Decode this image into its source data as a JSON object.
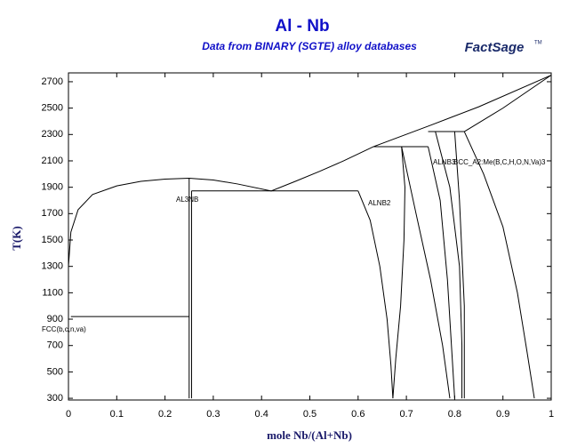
{
  "chart_data": {
    "type": "line",
    "title": "Al - Nb",
    "subtitle": "Data from BINARY (SGTE) alloy databases",
    "logo": "FactSage",
    "logo_mark": "TM",
    "x_label": "mole Nb/(Al+Nb)",
    "y_label": "T(K)",
    "xlim": [
      0,
      1
    ],
    "ylim": [
      287,
      2767
    ],
    "xticks": [
      0,
      0.1,
      0.2,
      0.3,
      0.4,
      0.5,
      0.6,
      0.7,
      0.8,
      0.9,
      1
    ],
    "yticks": [
      300,
      500,
      700,
      900,
      1100,
      1300,
      1500,
      1700,
      1900,
      2100,
      2300,
      2500,
      2700
    ],
    "annotations": [
      "AL3NB",
      "ALNB2",
      "FCC(b,c,n,va)",
      "ALNB3",
      "BCC_A2:Me(B,C,H,O,N,Va)3"
    ],
    "series": [
      {
        "color": "#000000",
        "x": [
          0,
          0.005,
          0.02,
          0.05,
          0.1,
          0.15,
          0.2,
          0.25,
          0.3,
          0.35,
          0.42,
          0.47,
          0.52,
          0.57,
          0.632,
          0.75,
          0.85,
          1
        ],
        "values": [
          1300,
          1560,
          1730,
          1845,
          1910,
          1945,
          1962,
          1968,
          1955,
          1925,
          1872,
          1945,
          2020,
          2100,
          2208,
          2370,
          2510,
          2750
        ]
      },
      {
        "color": "#000000",
        "x": [
          0.82,
          0.9,
          1
        ],
        "values": [
          2322,
          2500,
          2750
        ]
      },
      {
        "color": "#000000",
        "x": [
          0.005,
          0.25
        ],
        "values": [
          920,
          920
        ]
      },
      {
        "color": "#000000",
        "x": [
          0.25,
          0.25
        ],
        "values": [
          300,
          1968
        ]
      },
      {
        "color": "#000000",
        "x": [
          0.255,
          0.255
        ],
        "values": [
          300,
          1872
        ]
      },
      {
        "color": "#000000",
        "x": [
          0.255,
          0.6
        ],
        "values": [
          1872,
          1872
        ]
      },
      {
        "color": "#000000",
        "x": [
          0.632,
          0.745
        ],
        "values": [
          2208,
          2208
        ]
      },
      {
        "color": "#000000",
        "x": [
          0.745,
          0.82
        ],
        "values": [
          2322,
          2322
        ]
      },
      {
        "color": "#000000",
        "x": [
          0.6,
          0.625,
          0.645,
          0.66,
          0.668,
          0.672
        ],
        "values": [
          1872,
          1650,
          1300,
          900,
          550,
          300
        ]
      },
      {
        "color": "#000000",
        "x": [
          0.69,
          0.697,
          0.695,
          0.688,
          0.678,
          0.672
        ],
        "values": [
          2208,
          1900,
          1500,
          1000,
          600,
          300
        ]
      },
      {
        "color": "#000000",
        "x": [
          0.69,
          0.72,
          0.75,
          0.775,
          0.79
        ],
        "values": [
          2208,
          1700,
          1200,
          700,
          300
        ]
      },
      {
        "color": "#000000",
        "x": [
          0.745,
          0.77,
          0.785,
          0.795,
          0.8
        ],
        "values": [
          2208,
          1800,
          1200,
          600,
          300
        ]
      },
      {
        "color": "#000000",
        "x": [
          0.76,
          0.79,
          0.81,
          0.815,
          0.815
        ],
        "values": [
          2322,
          1900,
          1300,
          700,
          300
        ]
      },
      {
        "color": "#000000",
        "x": [
          0.8,
          0.81,
          0.82,
          0.82
        ],
        "values": [
          2322,
          1800,
          1000,
          300
        ]
      },
      {
        "color": "#000000",
        "x": [
          0.82,
          0.86,
          0.9,
          0.93,
          0.95,
          0.965
        ],
        "values": [
          2322,
          2000,
          1600,
          1100,
          650,
          300
        ]
      }
    ]
  }
}
